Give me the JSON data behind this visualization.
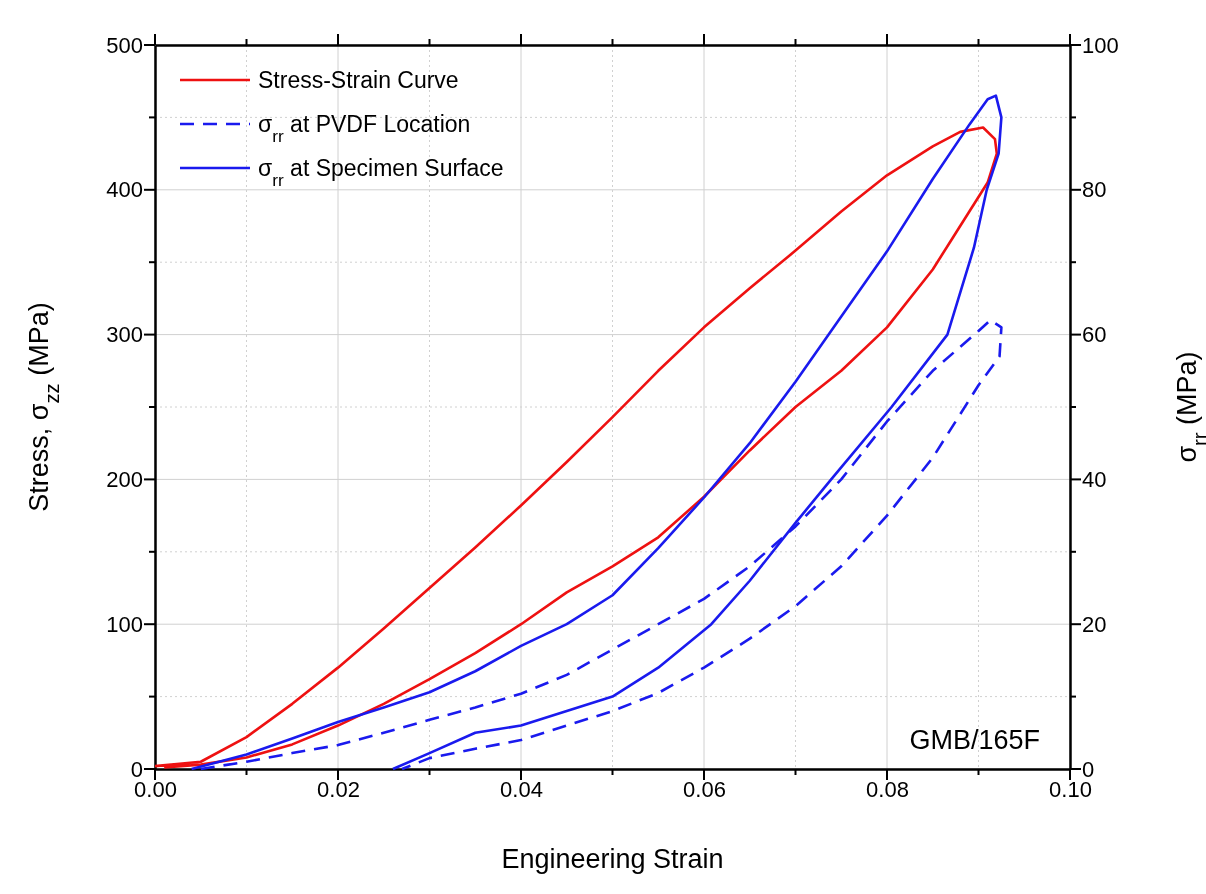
{
  "chart_data": {
    "type": "line",
    "xlabel": "Engineering Strain",
    "ylabel": "Stress, σ$_{zz}$ (MPa)",
    "y2label": "σ$_{rr}$ (MPa)",
    "xlim": [
      0,
      0.1
    ],
    "xticks": [
      {
        "value": 0,
        "label": "0.00"
      },
      {
        "value": 0.01,
        "label": null
      },
      {
        "value": 0.02,
        "label": "0.02"
      },
      {
        "value": 0.03,
        "label": null
      },
      {
        "value": 0.04,
        "label": "0.04"
      },
      {
        "value": 0.05,
        "label": null
      },
      {
        "value": 0.06,
        "label": "0.06"
      },
      {
        "value": 0.07,
        "label": null
      },
      {
        "value": 0.08,
        "label": "0.08"
      },
      {
        "value": 0.09,
        "label": null
      },
      {
        "value": 0.1,
        "label": "0.10"
      }
    ],
    "ylim": [
      0,
      500
    ],
    "yticks": [
      0,
      {
        "value": 50,
        "label": null
      },
      100,
      {
        "value": 150,
        "label": null
      },
      200,
      {
        "value": 250,
        "label": null
      },
      300,
      {
        "value": 350,
        "label": null
      },
      400,
      {
        "value": 450,
        "label": null
      },
      500
    ],
    "y2lim": [
      0,
      100
    ],
    "y2ticks": [
      0,
      {
        "value": 10,
        "label": null
      },
      20,
      {
        "value": 30,
        "label": null
      },
      40,
      {
        "value": 50,
        "label": null
      },
      60,
      {
        "value": 70,
        "label": null
      },
      80,
      {
        "value": 90,
        "label": null
      },
      100
    ],
    "grid": true,
    "legend": "top left",
    "annotations": [
      "GMB/165F"
    ],
    "series": [
      {
        "name": "Stress-Strain Curve",
        "color": "#ee1111",
        "line_style": "solid",
        "x": [
          0,
          0.005,
          0.01,
          0.015,
          0.02,
          0.025,
          0.03,
          0.035,
          0.04,
          0.045,
          0.05,
          0.055,
          0.06,
          0.065,
          0.07,
          0.075,
          0.08,
          0.085,
          0.088,
          0.0905,
          0.0918,
          0.092,
          0.091,
          0.089,
          0.087,
          0.085,
          0.08,
          0.075,
          0.07,
          0.065,
          0.06,
          0.055,
          0.05,
          0.045,
          0.04,
          0.035,
          0.03,
          0.025,
          0.02,
          0.015,
          0.01,
          0.005,
          0.001
        ],
        "values": [
          2,
          5,
          22,
          45,
          70,
          97,
          125,
          153,
          182,
          212,
          243,
          275,
          305,
          332,
          358,
          385,
          410,
          430,
          440,
          443,
          435,
          425,
          405,
          385,
          365,
          345,
          305,
          275,
          250,
          220,
          188,
          160,
          140,
          122,
          100,
          80,
          62,
          45,
          30,
          17,
          8,
          3,
          1
        ]
      },
      {
        "name": "σ$_{rr}$ at PVDF Location",
        "color": "#1a1aee",
        "line_style": "dashed",
        "axis": "y2",
        "x": [
          0.005,
          0.01,
          0.015,
          0.02,
          0.025,
          0.03,
          0.035,
          0.04,
          0.045,
          0.05,
          0.055,
          0.06,
          0.065,
          0.07,
          0.075,
          0.08,
          0.085,
          0.09,
          0.0913,
          0.0925,
          0.0923,
          0.09,
          0.085,
          0.08,
          0.075,
          0.07,
          0.065,
          0.06,
          0.055,
          0.05,
          0.045,
          0.04,
          0.035,
          0.03,
          0.027
        ],
        "values": [
          0,
          1,
          2.2,
          3.3,
          5,
          6.8,
          8.5,
          10.4,
          13,
          16.5,
          20,
          23.5,
          28,
          33.5,
          40,
          48,
          55,
          60.5,
          62,
          61,
          57,
          53,
          43,
          35,
          28,
          22.5,
          18,
          14,
          10.5,
          8,
          6,
          4,
          2.8,
          1.5,
          0
        ]
      },
      {
        "name": "σ$_{rr}$ at Specimen Surface",
        "color": "#1a1aee",
        "line_style": "solid",
        "axis": "y2",
        "x": [
          0.004,
          0.01,
          0.015,
          0.02,
          0.025,
          0.03,
          0.035,
          0.04,
          0.045,
          0.05,
          0.055,
          0.06,
          0.065,
          0.07,
          0.075,
          0.08,
          0.085,
          0.089,
          0.091,
          0.0919,
          0.0925,
          0.0922,
          0.0909,
          0.0895,
          0.0866,
          0.0805,
          0.0739,
          0.07,
          0.065,
          0.0608,
          0.055,
          0.05,
          0.045,
          0.04,
          0.035,
          0.03,
          0.026
        ],
        "values": [
          0,
          2,
          4.2,
          6.5,
          8.5,
          10.6,
          13.5,
          17,
          20,
          24,
          30.5,
          37.5,
          45,
          53.5,
          62.5,
          71.5,
          81.5,
          89,
          92.5,
          93,
          90,
          85,
          80,
          72,
          60,
          50,
          40,
          34,
          26,
          20,
          14,
          10,
          8,
          6,
          5,
          2.2,
          0
        ]
      }
    ]
  }
}
